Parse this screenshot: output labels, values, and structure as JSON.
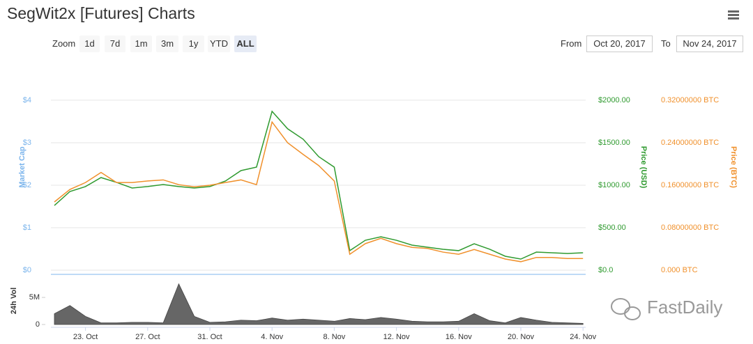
{
  "header": {
    "title": "SegWit2x [Futures] Charts"
  },
  "toolbar": {
    "zoom_label": "Zoom",
    "ranges": [
      "1d",
      "7d",
      "1m",
      "3m",
      "1y",
      "YTD",
      "ALL"
    ],
    "selected_range": "ALL",
    "from_label": "From",
    "from_value": "Oct 20, 2017",
    "to_label": "To",
    "to_value": "Nov 24, 2017"
  },
  "watermark": "FastDaily",
  "chart_data": [
    {
      "type": "line",
      "categories": [
        null,
        null,
        "23. Oct",
        null,
        null,
        null,
        "27. Oct",
        null,
        null,
        null,
        "31. Oct",
        null,
        null,
        null,
        "4. Nov",
        null,
        null,
        null,
        "8. Nov",
        null,
        null,
        null,
        "12. Nov",
        null,
        null,
        null,
        "16. Nov",
        null,
        null,
        null,
        "20. Nov",
        null,
        null,
        null,
        "24. Nov"
      ],
      "ylabel": "Market Cap",
      "ylabel_color": "#7cb5ec",
      "ylim": [
        0,
        4.9
      ],
      "yticks": [
        {
          "value": 0,
          "label": "$0"
        },
        {
          "value": 1,
          "label": "$1"
        },
        {
          "value": 2,
          "label": "$2"
        },
        {
          "value": 3,
          "label": "$3"
        },
        {
          "value": 4,
          "label": "$4"
        }
      ],
      "y2label": "Price (USD)",
      "y2lim": [
        0,
        2450
      ],
      "y2ticks": [
        {
          "value": 0,
          "label": "$0.0"
        },
        {
          "value": 500,
          "label": "$500.00"
        },
        {
          "value": 1000,
          "label": "$1000.00"
        },
        {
          "value": 1500,
          "label": "$1500.00"
        },
        {
          "value": 2000,
          "label": "$2000.00"
        }
      ],
      "y3label": "Price (BTC)",
      "y3lim": [
        0,
        0.392
      ],
      "y3ticks": [
        {
          "value": 0,
          "label": "0.000 BTC"
        },
        {
          "value": 0.08,
          "label": "0.08000000 BTC"
        },
        {
          "value": 0.16,
          "label": "0.16000000 BTC"
        },
        {
          "value": 0.24,
          "label": "0.24000000 BTC"
        },
        {
          "value": 0.32,
          "label": "0.32000000 BTC"
        }
      ],
      "grid": true,
      "series": [
        {
          "name": "Price (USD)",
          "axis": "y2",
          "color": "#2f9a2f",
          "values": [
            762,
            926,
            984,
            1090,
            1033,
            967,
            984,
            1008,
            984,
            967,
            984,
            1049,
            1172,
            1213,
            1869,
            1664,
            1541,
            1336,
            1213,
            230,
            352,
            393,
            352,
            295,
            270,
            246,
            230,
            311,
            246,
            164,
            131,
            213,
            205,
            197,
            205
          ]
        },
        {
          "name": "Price (BTC)",
          "axis": "y3",
          "color": "#f0902b",
          "values": [
            0.1285,
            0.152,
            0.165,
            0.184,
            0.165,
            0.165,
            0.168,
            0.17,
            0.161,
            0.157,
            0.16,
            0.165,
            0.17,
            0.161,
            0.279,
            0.24,
            0.218,
            0.197,
            0.168,
            0.03,
            0.05,
            0.06,
            0.05,
            0.043,
            0.041,
            0.034,
            0.03,
            0.039,
            0.03,
            0.021,
            0.016,
            0.024,
            0.024,
            0.022,
            0.022
          ]
        }
      ]
    },
    {
      "type": "area",
      "ylabel": "24h Vol",
      "color": "#666666",
      "ylim": [
        0,
        7200000
      ],
      "yticks": [
        0,
        {
          "value": 5000000,
          "label": "5M"
        }
      ],
      "values": [
        2000000,
        3500000,
        1500000,
        300000,
        300000,
        400000,
        400000,
        300000,
        7500000,
        1500000,
        400000,
        500000,
        800000,
        700000,
        1200000,
        800000,
        1000000,
        800000,
        600000,
        1100000,
        900000,
        1300000,
        1000000,
        600000,
        500000,
        500000,
        600000,
        2000000,
        700000,
        300000,
        1300000,
        800000,
        400000,
        300000,
        200000
      ]
    }
  ]
}
